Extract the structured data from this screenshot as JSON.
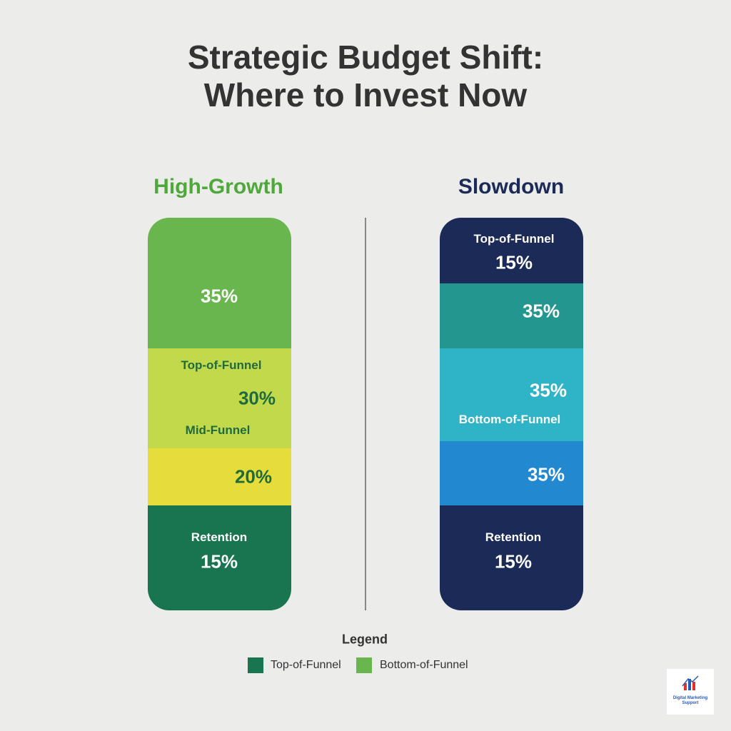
{
  "title": [
    "Strategic Budget Shift:",
    "Where to Invest Now"
  ],
  "columns": [
    {
      "heading": "High-Growth",
      "segments": [
        {
          "texts": [
            "35%"
          ]
        },
        {
          "texts": [
            "Top-of-Funnel",
            "30%",
            "Mid-Funnel"
          ]
        },
        {
          "texts": [
            "20%"
          ]
        },
        {
          "texts": [
            "Retention",
            "15%"
          ]
        }
      ]
    },
    {
      "heading": "Slowdown",
      "segments": [
        {
          "texts": [
            "Top-of-Funnel",
            "15%"
          ]
        },
        {
          "texts": [
            "35%"
          ]
        },
        {
          "texts": [
            "35%",
            "Bottom-of-Funnel"
          ]
        },
        {
          "texts": [
            "35%"
          ]
        },
        {
          "texts": [
            "Retention",
            "15%"
          ]
        }
      ]
    }
  ],
  "legend": {
    "title": "Legend",
    "items": [
      "Top-of-Funnel",
      "Bottom-of-Funnel"
    ]
  },
  "logo": "Digital Marketing Support"
}
